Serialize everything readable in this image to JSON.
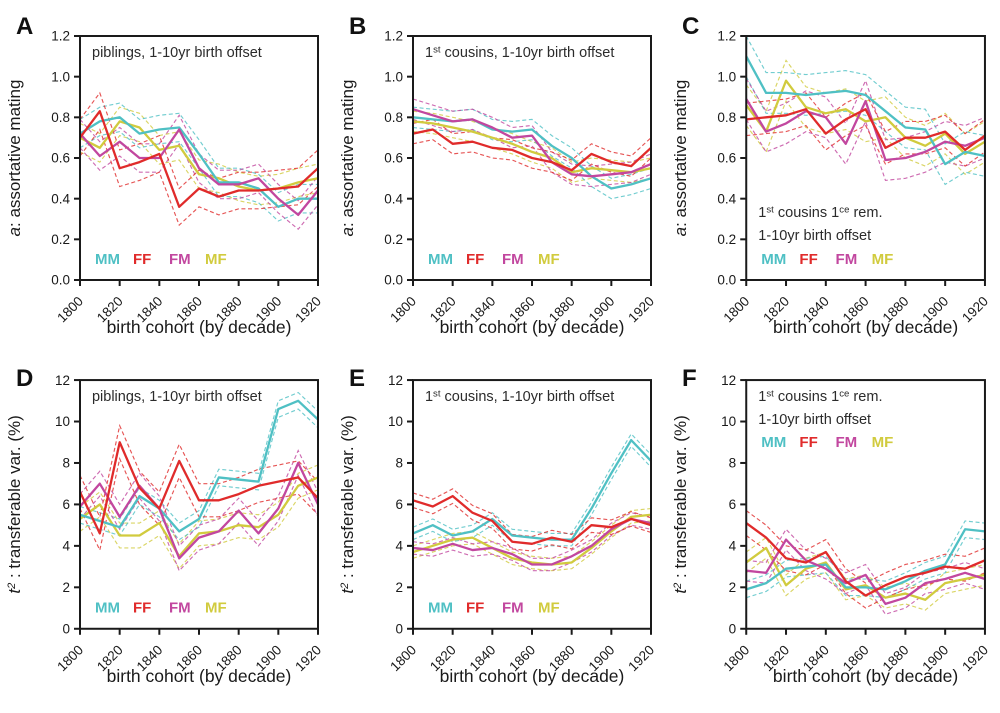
{
  "figure": {
    "xlabel": "birth cohort (by decade)",
    "legend_labels": [
      "MM",
      "FF",
      "FM",
      "MF"
    ],
    "colors": {
      "MM": "#4fc0c4",
      "FF": "#e02b2b",
      "FM": "#c2479f",
      "MF": "#d1cb3e",
      "axis": "#1a1a1a",
      "title_text": "#2b2b2b",
      "background": "#ffffff"
    }
  },
  "chart_data": [
    {
      "type": "line",
      "label": "A",
      "title_lines": [
        "piblings, 1-10yr birth offset"
      ],
      "title_y": "top",
      "legend_y": "bottom",
      "ylabel_italic": "a",
      "ylabel_sup": "",
      "ylabel_rest": ": assortative mating",
      "xlabel": "birth cohort (by decade)",
      "xlim": [
        1800,
        1920
      ],
      "ylim": [
        0,
        1.2
      ],
      "xticks": [
        1800,
        1820,
        1840,
        1860,
        1880,
        1900,
        1920
      ],
      "yticks": [
        0,
        0.2,
        0.4,
        0.6,
        0.8,
        1.0,
        1.2
      ],
      "ytick_labels": [
        "0.0",
        "0.2",
        "0.4",
        "0.6",
        "0.8",
        "1.0",
        "1.2"
      ],
      "x": [
        1800,
        1810,
        1820,
        1830,
        1840,
        1850,
        1860,
        1870,
        1880,
        1890,
        1900,
        1910,
        1920
      ],
      "series": [
        {
          "name": "MM",
          "color": "#4fc0c4",
          "ci": 0.07,
          "values": [
            0.72,
            0.78,
            0.8,
            0.72,
            0.74,
            0.75,
            0.62,
            0.48,
            0.48,
            0.45,
            0.36,
            0.4,
            0.4
          ]
        },
        {
          "name": "FF",
          "color": "#e02b2b",
          "ci": 0.09,
          "values": [
            0.7,
            0.83,
            0.55,
            0.58,
            0.62,
            0.36,
            0.45,
            0.41,
            0.44,
            0.44,
            0.45,
            0.46,
            0.55
          ]
        },
        {
          "name": "FM",
          "color": "#c2479f",
          "ci": 0.07,
          "values": [
            0.72,
            0.61,
            0.68,
            0.6,
            0.6,
            0.74,
            0.55,
            0.47,
            0.47,
            0.5,
            0.4,
            0.32,
            0.44
          ]
        },
        {
          "name": "MF",
          "color": "#d1cb3e",
          "ci": 0.07,
          "values": [
            0.7,
            0.65,
            0.78,
            0.75,
            0.64,
            0.66,
            0.52,
            0.5,
            0.46,
            0.44,
            0.45,
            0.48,
            0.5
          ]
        }
      ]
    },
    {
      "type": "line",
      "label": "B",
      "title_lines": [
        "1^st cousins, 1-10yr birth offset"
      ],
      "title_y": "top",
      "legend_y": "bottom",
      "ylabel_italic": "a",
      "ylabel_sup": "",
      "ylabel_rest": ": assortative mating",
      "xlabel": "birth cohort (by decade)",
      "xlim": [
        1800,
        1920
      ],
      "ylim": [
        0,
        1.2
      ],
      "xticks": [
        1800,
        1820,
        1840,
        1860,
        1880,
        1900,
        1920
      ],
      "yticks": [
        0,
        0.2,
        0.4,
        0.6,
        0.8,
        1.0,
        1.2
      ],
      "ytick_labels": [
        "0.0",
        "0.2",
        "0.4",
        "0.6",
        "0.8",
        "1.0",
        "1.2"
      ],
      "x": [
        1800,
        1810,
        1820,
        1830,
        1840,
        1850,
        1860,
        1870,
        1880,
        1890,
        1900,
        1910,
        1920
      ],
      "series": [
        {
          "name": "MM",
          "color": "#4fc0c4",
          "ci": 0.05,
          "values": [
            0.8,
            0.79,
            0.78,
            0.79,
            0.74,
            0.73,
            0.74,
            0.66,
            0.6,
            0.51,
            0.45,
            0.47,
            0.5
          ]
        },
        {
          "name": "FF",
          "color": "#e02b2b",
          "ci": 0.05,
          "values": [
            0.72,
            0.74,
            0.67,
            0.68,
            0.65,
            0.64,
            0.6,
            0.58,
            0.54,
            0.62,
            0.58,
            0.56,
            0.65
          ]
        },
        {
          "name": "FM",
          "color": "#c2479f",
          "ci": 0.05,
          "values": [
            0.84,
            0.81,
            0.78,
            0.79,
            0.75,
            0.7,
            0.71,
            0.58,
            0.52,
            0.51,
            0.52,
            0.53,
            0.57
          ]
        },
        {
          "name": "MF",
          "color": "#d1cb3e",
          "ci": 0.05,
          "values": [
            0.78,
            0.77,
            0.75,
            0.73,
            0.7,
            0.67,
            0.63,
            0.6,
            0.53,
            0.55,
            0.54,
            0.53,
            0.55
          ]
        }
      ]
    },
    {
      "type": "line",
      "label": "C",
      "title_lines": [
        "1^st cousins 1^ce rem.",
        "1-10yr birth offset"
      ],
      "title_y": "bottom",
      "legend_y": "bottom",
      "ylabel_italic": "a",
      "ylabel_sup": "",
      "ylabel_rest": ": assortative mating",
      "xlabel": "birth cohort (by decade)",
      "xlim": [
        1800,
        1920
      ],
      "ylim": [
        0,
        1.2
      ],
      "xticks": [
        1800,
        1820,
        1840,
        1860,
        1880,
        1900,
        1920
      ],
      "yticks": [
        0,
        0.2,
        0.4,
        0.6,
        0.8,
        1.0,
        1.2
      ],
      "ytick_labels": [
        "0.0",
        "0.2",
        "0.4",
        "0.6",
        "0.8",
        "1.0",
        "1.2"
      ],
      "x": [
        1800,
        1810,
        1820,
        1830,
        1840,
        1850,
        1860,
        1870,
        1880,
        1890,
        1900,
        1910,
        1920
      ],
      "series": [
        {
          "name": "MM",
          "color": "#4fc0c4",
          "ci": 0.1,
          "values": [
            1.1,
            0.92,
            0.92,
            0.91,
            0.92,
            0.93,
            0.91,
            0.83,
            0.75,
            0.74,
            0.57,
            0.63,
            0.61
          ]
        },
        {
          "name": "FF",
          "color": "#e02b2b",
          "ci": 0.08,
          "values": [
            0.79,
            0.8,
            0.81,
            0.84,
            0.72,
            0.79,
            0.84,
            0.65,
            0.7,
            0.7,
            0.73,
            0.64,
            0.71
          ]
        },
        {
          "name": "FM",
          "color": "#c2479f",
          "ci": 0.1,
          "values": [
            0.89,
            0.73,
            0.77,
            0.83,
            0.8,
            0.67,
            0.88,
            0.59,
            0.6,
            0.63,
            0.68,
            0.66,
            0.7
          ]
        },
        {
          "name": "MF",
          "color": "#d1cb3e",
          "ci": 0.1,
          "values": [
            0.86,
            0.73,
            0.98,
            0.85,
            0.82,
            0.84,
            0.78,
            0.8,
            0.7,
            0.66,
            0.72,
            0.62,
            0.68
          ]
        }
      ]
    },
    {
      "type": "line",
      "label": "D",
      "title_lines": [
        "piblings, 1-10yr birth offset"
      ],
      "title_y": "top",
      "legend_y": "bottom",
      "ylabel_italic": "t",
      "ylabel_sup": "2",
      "ylabel_rest": " : transferable var. (%)",
      "xlabel": "birth cohort (by decade)",
      "xlim": [
        1800,
        1920
      ],
      "ylim": [
        0,
        12
      ],
      "xticks": [
        1800,
        1820,
        1840,
        1860,
        1880,
        1900,
        1920
      ],
      "yticks": [
        0,
        2,
        4,
        6,
        8,
        10,
        12
      ],
      "ytick_labels": [
        "0",
        "2",
        "4",
        "6",
        "8",
        "10",
        "12"
      ],
      "x": [
        1800,
        1810,
        1820,
        1830,
        1840,
        1850,
        1860,
        1870,
        1880,
        1890,
        1900,
        1910,
        1920
      ],
      "series": [
        {
          "name": "MM",
          "color": "#4fc0c4",
          "ci": 0.4,
          "values": [
            5.5,
            5.2,
            4.9,
            6.4,
            5.8,
            4.7,
            5.3,
            7.3,
            7.2,
            7.1,
            10.6,
            11.0,
            10.1
          ]
        },
        {
          "name": "FF",
          "color": "#e02b2b",
          "ci": 0.8,
          "values": [
            6.6,
            4.6,
            9.0,
            6.8,
            5.8,
            8.1,
            6.2,
            6.2,
            6.5,
            6.9,
            7.1,
            7.3,
            6.3
          ]
        },
        {
          "name": "FM",
          "color": "#c2479f",
          "ci": 0.6,
          "values": [
            5.9,
            7.0,
            5.4,
            6.9,
            5.8,
            3.4,
            4.4,
            4.7,
            5.7,
            4.6,
            5.8,
            8.0,
            6.0
          ]
        },
        {
          "name": "MF",
          "color": "#d1cb3e",
          "ci": 0.6,
          "values": [
            5.3,
            6.0,
            4.5,
            4.5,
            5.1,
            3.5,
            4.6,
            4.7,
            5.0,
            4.9,
            5.5,
            6.9,
            7.3
          ]
        }
      ]
    },
    {
      "type": "line",
      "label": "E",
      "title_lines": [
        "1^st cousins, 1-10yr birth offset"
      ],
      "title_y": "top",
      "legend_y": "bottom",
      "ylabel_italic": "t",
      "ylabel_sup": "2",
      "ylabel_rest": " : transferable var. (%)",
      "xlabel": "birth cohort (by decade)",
      "xlim": [
        1800,
        1920
      ],
      "ylim": [
        0,
        12
      ],
      "xticks": [
        1800,
        1820,
        1840,
        1860,
        1880,
        1900,
        1920
      ],
      "yticks": [
        0,
        2,
        4,
        6,
        8,
        10,
        12
      ],
      "ytick_labels": [
        "0",
        "2",
        "4",
        "6",
        "8",
        "10",
        "12"
      ],
      "x": [
        1800,
        1810,
        1820,
        1830,
        1840,
        1850,
        1860,
        1870,
        1880,
        1890,
        1900,
        1910,
        1920
      ],
      "series": [
        {
          "name": "MM",
          "color": "#4fc0c4",
          "ci": 0.3,
          "values": [
            4.6,
            5.0,
            4.5,
            4.7,
            5.3,
            4.5,
            4.4,
            4.3,
            4.3,
            5.8,
            7.5,
            9.1,
            8.1
          ]
        },
        {
          "name": "FF",
          "color": "#e02b2b",
          "ci": 0.35,
          "values": [
            6.2,
            5.9,
            6.4,
            5.6,
            5.2,
            4.2,
            4.1,
            4.4,
            4.2,
            5.0,
            4.9,
            5.3,
            5.0
          ]
        },
        {
          "name": "FM",
          "color": "#c2479f",
          "ci": 0.3,
          "values": [
            3.9,
            3.8,
            4.1,
            3.8,
            3.9,
            3.6,
            3.1,
            3.1,
            3.5,
            4.0,
            4.8,
            5.3,
            5.1
          ]
        },
        {
          "name": "MF",
          "color": "#d1cb3e",
          "ci": 0.3,
          "values": [
            3.7,
            4.0,
            4.3,
            4.4,
            3.9,
            3.4,
            3.2,
            3.1,
            3.2,
            3.9,
            4.7,
            5.4,
            5.5
          ]
        }
      ]
    },
    {
      "type": "line",
      "label": "F",
      "title_lines": [
        "1^st cousins 1^ce rem.",
        "1-10yr birth offset"
      ],
      "title_y": "top",
      "legend_y": "top",
      "ylabel_italic": "t",
      "ylabel_sup": "2",
      "ylabel_rest": " : transferable var. (%)",
      "xlabel": "birth cohort (by decade)",
      "xlim": [
        1800,
        1920
      ],
      "ylim": [
        0,
        12
      ],
      "xticks": [
        1800,
        1820,
        1840,
        1860,
        1880,
        1900,
        1920
      ],
      "yticks": [
        0,
        2,
        4,
        6,
        8,
        10,
        12
      ],
      "ytick_labels": [
        "0",
        "2",
        "4",
        "6",
        "8",
        "10",
        "12"
      ],
      "x": [
        1800,
        1810,
        1820,
        1830,
        1840,
        1850,
        1860,
        1870,
        1880,
        1890,
        1900,
        1910,
        1920
      ],
      "series": [
        {
          "name": "MM",
          "color": "#4fc0c4",
          "ci": 0.4,
          "values": [
            1.9,
            2.2,
            2.9,
            3.0,
            3.1,
            2.0,
            2.0,
            1.9,
            2.3,
            2.8,
            3.1,
            4.8,
            4.7
          ]
        },
        {
          "name": "FF",
          "color": "#e02b2b",
          "ci": 0.6,
          "values": [
            5.1,
            4.4,
            3.4,
            3.2,
            3.7,
            2.3,
            1.6,
            2.1,
            2.5,
            2.7,
            3.0,
            2.9,
            3.3
          ]
        },
        {
          "name": "FM",
          "color": "#c2479f",
          "ci": 0.5,
          "values": [
            2.8,
            2.7,
            4.3,
            3.3,
            2.9,
            2.2,
            2.6,
            1.2,
            1.5,
            2.2,
            2.4,
            2.7,
            2.4
          ]
        },
        {
          "name": "MF",
          "color": "#d1cb3e",
          "ci": 0.5,
          "values": [
            3.2,
            3.9,
            2.1,
            2.9,
            3.2,
            1.9,
            2.1,
            1.5,
            1.7,
            1.4,
            2.2,
            2.4,
            2.6
          ]
        }
      ]
    }
  ]
}
